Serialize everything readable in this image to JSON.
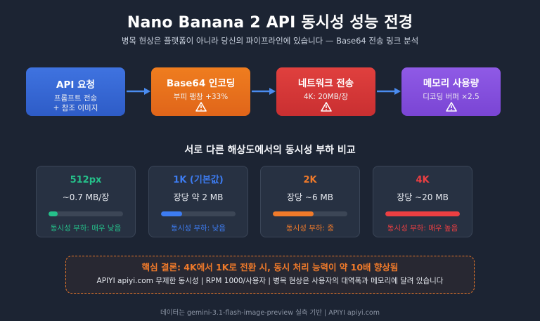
{
  "title": "Nano Banana 2 API 동시성 성능 전경",
  "subtitle": "병목 현상은 플랫폼이 아니라 당신의 파이프라인에 있습니다 — Base64 전송 링크 분석",
  "pipeline": [
    {
      "title": "API 요청",
      "lines": [
        "프롬프트 전송",
        "+ 참조 이미지"
      ],
      "warning": false
    },
    {
      "title": "Base64 인코딩",
      "lines": [
        "부피 팽창 +33%"
      ],
      "warning": true
    },
    {
      "title": "네트워크 전송",
      "lines": [
        "4K: 20MB/장"
      ],
      "warning": true
    },
    {
      "title": "메모리 사용량",
      "lines": [
        "디코딩 버퍼 ×2.5"
      ],
      "warning": true
    }
  ],
  "icons": {
    "warning": "warning-triangle-icon",
    "arrow": "arrow-right-icon"
  },
  "section_title": "서로 다른 해상도에서의 동시성 부하 비교",
  "resolutions": [
    {
      "name": "512px",
      "size": "~0.7 MB/장",
      "load": "동시성 부하: 매우 낮음",
      "level": 0.12,
      "color": "#25c08a"
    },
    {
      "name": "1K (기본값)",
      "size": "장당 약 2 MB",
      "load": "동시성 부하: 낮음",
      "level": 0.28,
      "color": "#3d7cf2"
    },
    {
      "name": "2K",
      "size": "장당 ~6 MB",
      "load": "동시성 부하: 중",
      "level": 0.55,
      "color": "#f07a2a"
    },
    {
      "name": "4K",
      "size": "장당 ~20 MB",
      "load": "동시성 부하: 매우 높음",
      "level": 1.0,
      "color": "#ec3f42"
    }
  ],
  "conclusion": {
    "headline": "핵심 결론: 4K에서 1K로 전환 시, 동시 처리 능력이 약 10배 향상됨",
    "body": "APIYI apiyi.com 무제한 동시성 | RPM 1000/사용자 | 병목 현상은 사용자의 대역폭과 메모리에 달려 있습니다"
  },
  "footer": "데이터는 gemini-3.1-flash-image-preview 실측 기반 | APIYI apiyi.com"
}
